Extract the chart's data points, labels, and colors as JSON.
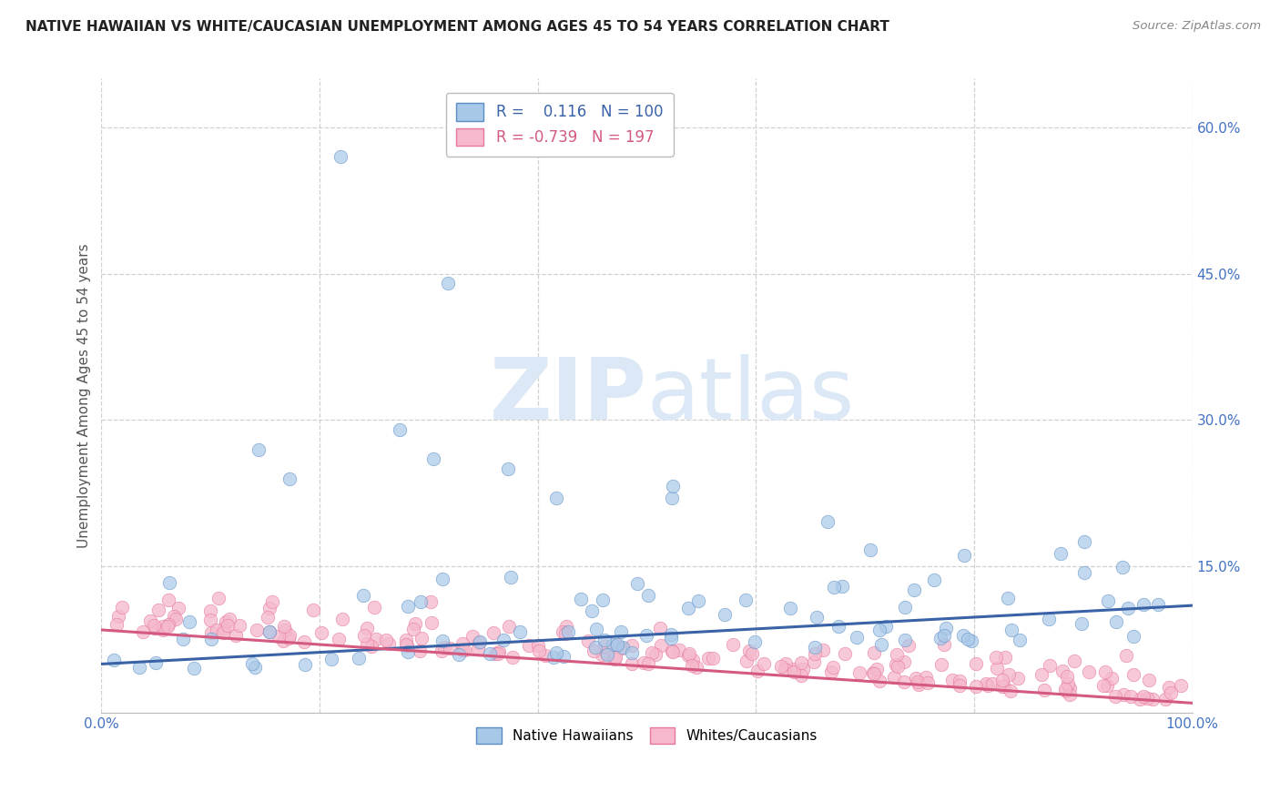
{
  "title": "NATIVE HAWAIIAN VS WHITE/CAUCASIAN UNEMPLOYMENT AMONG AGES 45 TO 54 YEARS CORRELATION CHART",
  "source": "Source: ZipAtlas.com",
  "ylabel": "Unemployment Among Ages 45 to 54 years",
  "xlim": [
    0,
    1.0
  ],
  "ylim": [
    0,
    0.65
  ],
  "yticks": [
    0.0,
    0.15,
    0.3,
    0.45,
    0.6
  ],
  "yticklabels": [
    "",
    "15.0%",
    "30.0%",
    "45.0%",
    "60.0%"
  ],
  "xtick_show": [
    0.0,
    1.0
  ],
  "xticklabels_show": [
    "0.0%",
    "100.0%"
  ],
  "blue_color": "#a8c8e8",
  "blue_edge_color": "#5b8ec4",
  "blue_line_color": "#3a62a7",
  "pink_color": "#f5b8cc",
  "pink_edge_color": "#e8789a",
  "pink_line_color": "#d45a80",
  "legend_blue_R": "0.116",
  "legend_blue_N": "100",
  "legend_pink_R": "-0.739",
  "legend_pink_N": "197",
  "blue_N": 100,
  "pink_N": 197,
  "watermark_zip": "ZIP",
  "watermark_atlas": "atlas",
  "watermark_color": "#dce8f5",
  "bg_color": "#ffffff",
  "grid_color": "#d0d0d0",
  "title_color": "#222222",
  "ylabel_color": "#555555",
  "tick_color": "#4472c4",
  "source_color": "#888888"
}
